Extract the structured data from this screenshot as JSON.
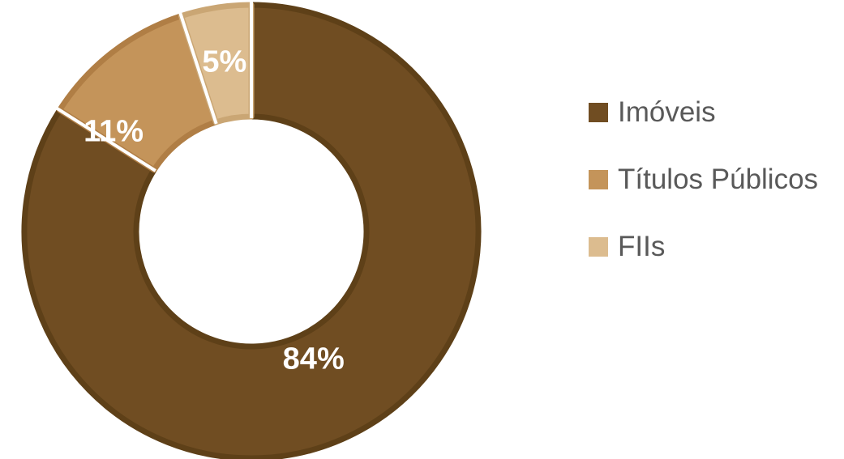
{
  "chart_data": {
    "type": "pie",
    "variant": "donut",
    "categories": [
      "Imóveis",
      "Títulos Públicos",
      "FIIs"
    ],
    "values": [
      84,
      11,
      5
    ],
    "data_labels": [
      "84%",
      "11%",
      "5%"
    ],
    "colors": [
      "#704d22",
      "#c4945a",
      "#dcbc8f"
    ],
    "border_colors": [
      "#5e4018",
      "#b07e45",
      "#caa674"
    ],
    "label_color": "#ffffff",
    "legend_position": "right",
    "title": ""
  }
}
